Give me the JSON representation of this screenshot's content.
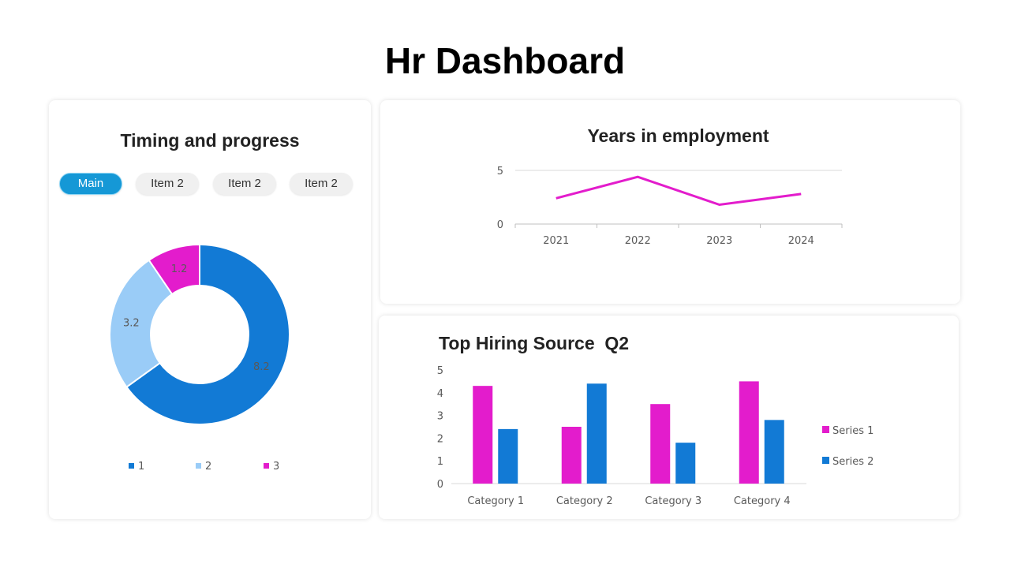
{
  "title": "Hr Dashboard",
  "timing": {
    "title": "Timing and progress",
    "tabs": [
      "Main",
      "Item 2",
      "Item 2",
      "Item 2"
    ],
    "active_tab": 0
  },
  "chart_data": [
    {
      "type": "pie",
      "variant": "donut",
      "labels": [
        "1",
        "2",
        "3"
      ],
      "values": [
        8.2,
        3.2,
        1.2
      ],
      "colors": [
        "#127ad5",
        "#9accf7",
        "#e31ccc"
      ],
      "legend": "bottom",
      "data_labels": true
    },
    {
      "type": "line",
      "title": "Years in employment",
      "categories": [
        "2021",
        "2022",
        "2023",
        "2024"
      ],
      "values": [
        2.4,
        4.4,
        1.8,
        2.8
      ],
      "ylim": [
        0,
        5
      ],
      "yticks": [
        0,
        5
      ],
      "color": "#e31ccc",
      "grid": true
    },
    {
      "type": "bar",
      "title": "Top Hiring Source  Q2",
      "categories": [
        "Category 1",
        "Category 2",
        "Category 3",
        "Category 4"
      ],
      "series": [
        {
          "name": "Series 1",
          "values": [
            4.3,
            2.5,
            3.5,
            4.5
          ],
          "color": "#e31ccc"
        },
        {
          "name": "Series 2",
          "values": [
            2.4,
            4.4,
            1.8,
            2.8
          ],
          "color": "#127ad5"
        }
      ],
      "ylim": [
        0,
        5
      ],
      "yticks": [
        0,
        1,
        2,
        3,
        4,
        5
      ],
      "legend": "right",
      "grid": false
    }
  ]
}
